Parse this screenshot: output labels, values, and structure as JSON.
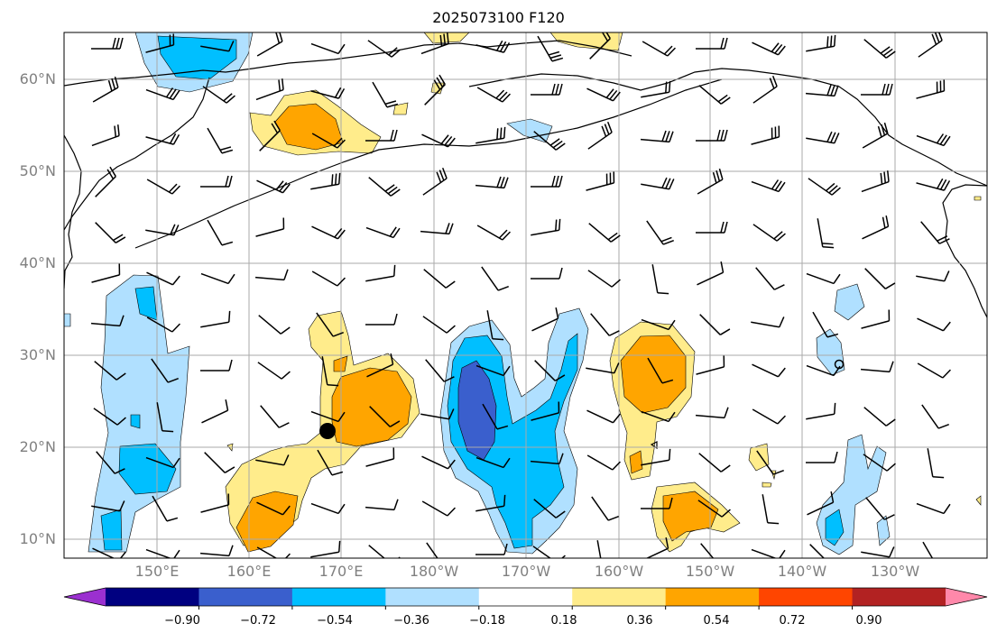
{
  "title": "2025073100 F120",
  "lat_labels": [
    "60°N",
    "50°N",
    "40°N",
    "30°N",
    "20°N",
    "10°N"
  ],
  "lon_labels": [
    "150°E",
    "160°E",
    "170°E",
    "180°W",
    "170°W",
    "160°W",
    "150°W",
    "140°W",
    "130°W"
  ],
  "colorbar": {
    "ticks": [
      "−0.90",
      "−0.72",
      "−0.54",
      "−0.36",
      "−0.18",
      "0.18",
      "0.36",
      "0.54",
      "0.72",
      "0.90"
    ],
    "colors": [
      "#9b30d0",
      "#000080",
      "#3a5fcd",
      "#00bfff",
      "#b0e0ff",
      "#ffffff",
      "#ffec8b",
      "#ffa500",
      "#ff4500",
      "#b22222",
      "#ff88aa"
    ]
  },
  "colors": {
    "neg_light": "#b0e0ff",
    "neg_mid": "#00bfff",
    "neg_strong": "#3a5fcd",
    "pos_light": "#ffec8b",
    "pos_mid": "#ffa500",
    "grid": "#aaaaaa",
    "marker": "#000000"
  },
  "map": {
    "projection": "PlateCarree",
    "lon_range": [
      "140°E",
      "120°W"
    ],
    "lat_range": [
      "8°N",
      "65°N"
    ],
    "grid": true,
    "features": [
      "coastlines",
      "wind-barbs",
      "filled-anomaly-contours",
      "storm-center-marker"
    ]
  }
}
